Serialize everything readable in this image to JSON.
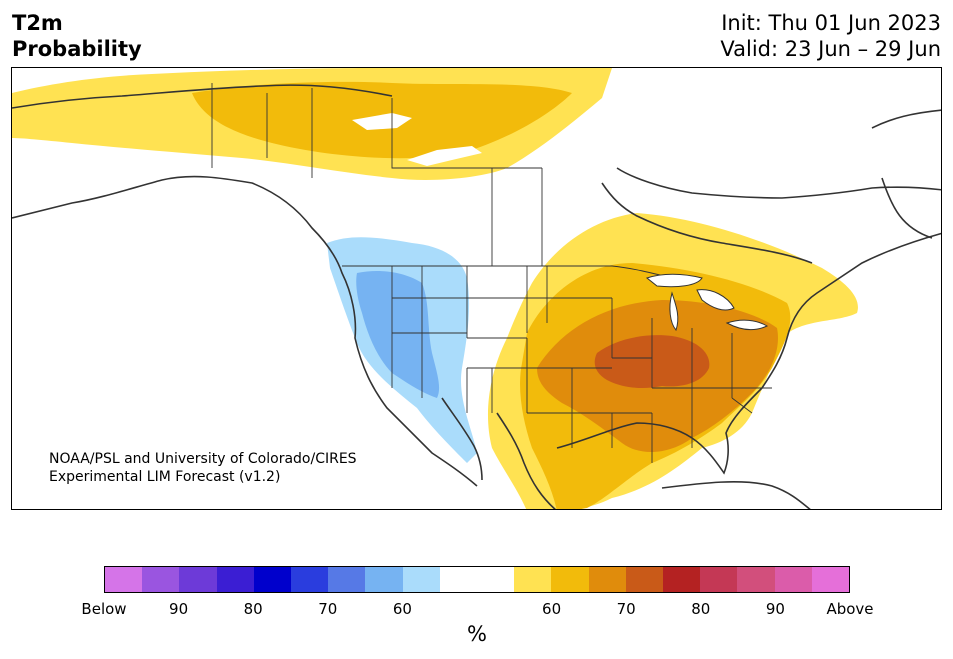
{
  "title": {
    "variable": "T2m",
    "quantity": "Probability",
    "init": "Init: Thu 01 Jun 2023",
    "valid": "Valid: 23 Jun – 29 Jun"
  },
  "credit": {
    "line1": "NOAA/PSL and University of Colorado/CIRES",
    "line2": "Experimental LIM Forecast (v1.2)"
  },
  "colorbar": {
    "unit": "%",
    "colors": [
      "#d574e8",
      "#9a55e0",
      "#6d3ad8",
      "#3b1ed3",
      "#0000cc",
      "#2a3dde",
      "#5679e6",
      "#76b3f2",
      "#aadcfb",
      "#ffffff",
      "#ffffff",
      "#ffe252",
      "#f2bb0b",
      "#e08c0c",
      "#c95a18",
      "#b42222",
      "#c43855",
      "#d24f7c",
      "#db5caa",
      "#e56fd9"
    ],
    "tick_labels": [
      "Below",
      "90",
      "80",
      "70",
      "60",
      "60",
      "70",
      "80",
      "90",
      "Above"
    ]
  },
  "map": {
    "below_normal_colors": {
      "light": "#aadcfb",
      "medium": "#76b3f2"
    },
    "above_normal_colors": {
      "light": "#ffe252",
      "medium": "#f2bb0b",
      "dark": "#e08c0c",
      "darker": "#c95a18"
    },
    "border_color": "#333333"
  }
}
